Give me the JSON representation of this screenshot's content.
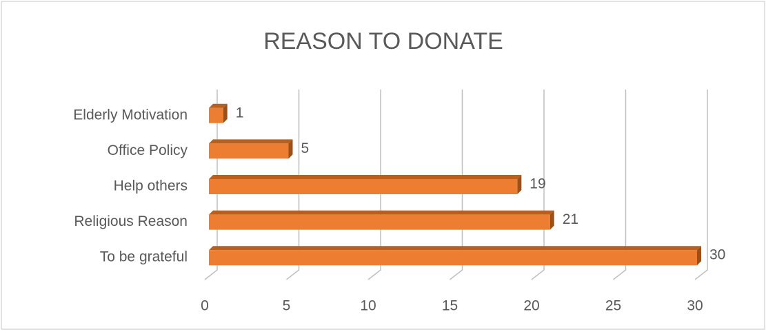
{
  "chart_data": {
    "type": "bar3d_horizontal",
    "title": "REASON TO DONATE",
    "categories": [
      "Elderly Motivation",
      "Office Policy",
      "Help others",
      "Religious Reason",
      "To be grateful"
    ],
    "values": [
      1,
      5,
      19,
      21,
      30
    ],
    "color": "#ed7d31",
    "xlim": [
      0,
      30
    ],
    "xticks": [
      0,
      5,
      10,
      15,
      20,
      25,
      30
    ],
    "grid": true
  }
}
